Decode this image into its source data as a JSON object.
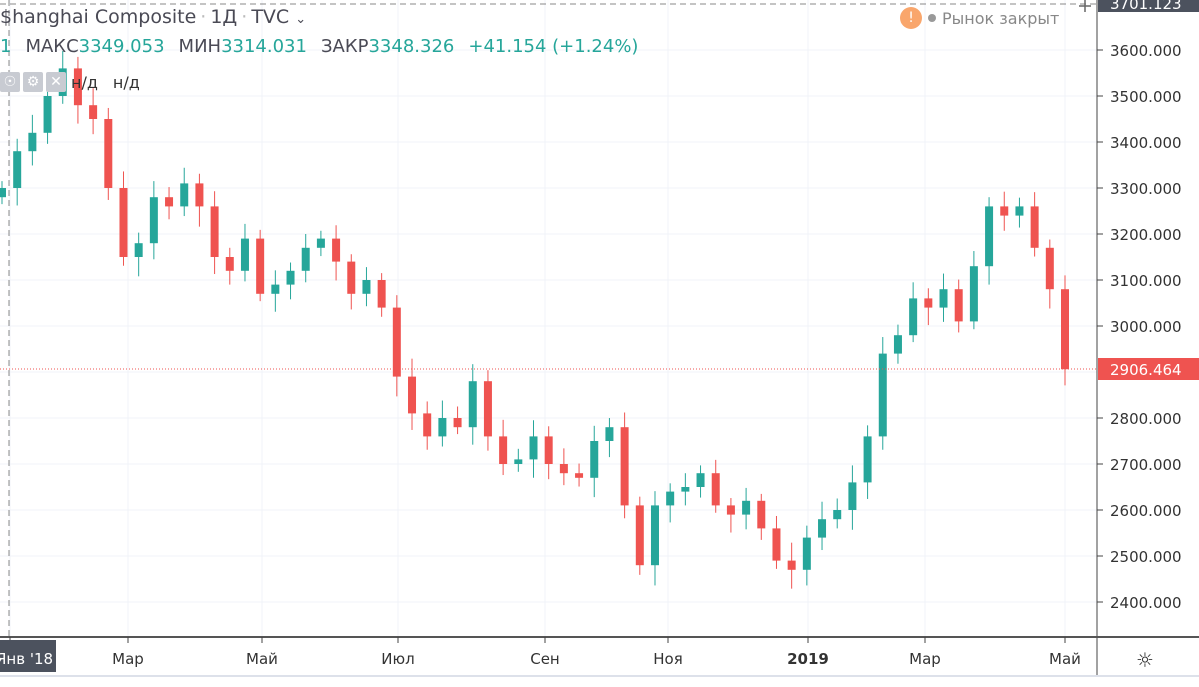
{
  "header": {
    "symbol": "$hanghai Composite",
    "interval": "1Д",
    "source": "TVC",
    "sep": "·"
  },
  "ohlc": {
    "prefix": "1",
    "high_label": "МАКС",
    "high": "3349.053",
    "low_label": "МИН",
    "low": "3314.031",
    "close_label": "ЗАКР",
    "close": "3348.326",
    "change": "+41.154 (+1.24%)"
  },
  "indicator": {
    "v1": "н/д",
    "v2": "н/д"
  },
  "status": {
    "warning": "!",
    "market": "Рынок закрыт"
  },
  "colors": {
    "up": "#26a69a",
    "down": "#ef5350",
    "last": "#ef5350"
  },
  "chart_data": {
    "type": "candlestick",
    "title": "$hanghai Composite · 1Д · TVC",
    "ylim": [
      2350,
      3720
    ],
    "yticks": [
      "3600.000",
      "3500.000",
      "3400.000",
      "3300.000",
      "3200.000",
      "3100.000",
      "3000.000",
      "2800.000",
      "2700.000",
      "2600.000",
      "2500.000",
      "2400.000"
    ],
    "ytick_values": [
      3600,
      3500,
      3400,
      3300,
      3200,
      3100,
      3000,
      2800,
      2700,
      2600,
      2500,
      2400
    ],
    "xticks": [
      "Янв '18",
      "Мар",
      "Май",
      "Июл",
      "Сен",
      "Ноя",
      "2019",
      "Мар",
      "Май"
    ],
    "crosshair_price": "3701.123",
    "last_price": "2906.464",
    "last_value": 2906.464,
    "closes": [
      3300,
      3380,
      3420,
      3500,
      3560,
      3480,
      3450,
      3300,
      3150,
      3180,
      3280,
      3260,
      3310,
      3260,
      3150,
      3120,
      3190,
      3070,
      3090,
      3120,
      3170,
      3190,
      3140,
      3070,
      3100,
      3040,
      2890,
      2810,
      2760,
      2800,
      2780,
      2880,
      2760,
      2700,
      2710,
      2760,
      2700,
      2680,
      2670,
      2750,
      2780,
      2610,
      2480,
      2610,
      2640,
      2650,
      2680,
      2610,
      2590,
      2620,
      2560,
      2490,
      2470,
      2540,
      2580,
      2600,
      2660,
      2760,
      2940,
      2980,
      3060,
      3040,
      3080,
      3010,
      3130,
      3260,
      3240,
      3260,
      3170,
      3080,
      2906
    ]
  }
}
